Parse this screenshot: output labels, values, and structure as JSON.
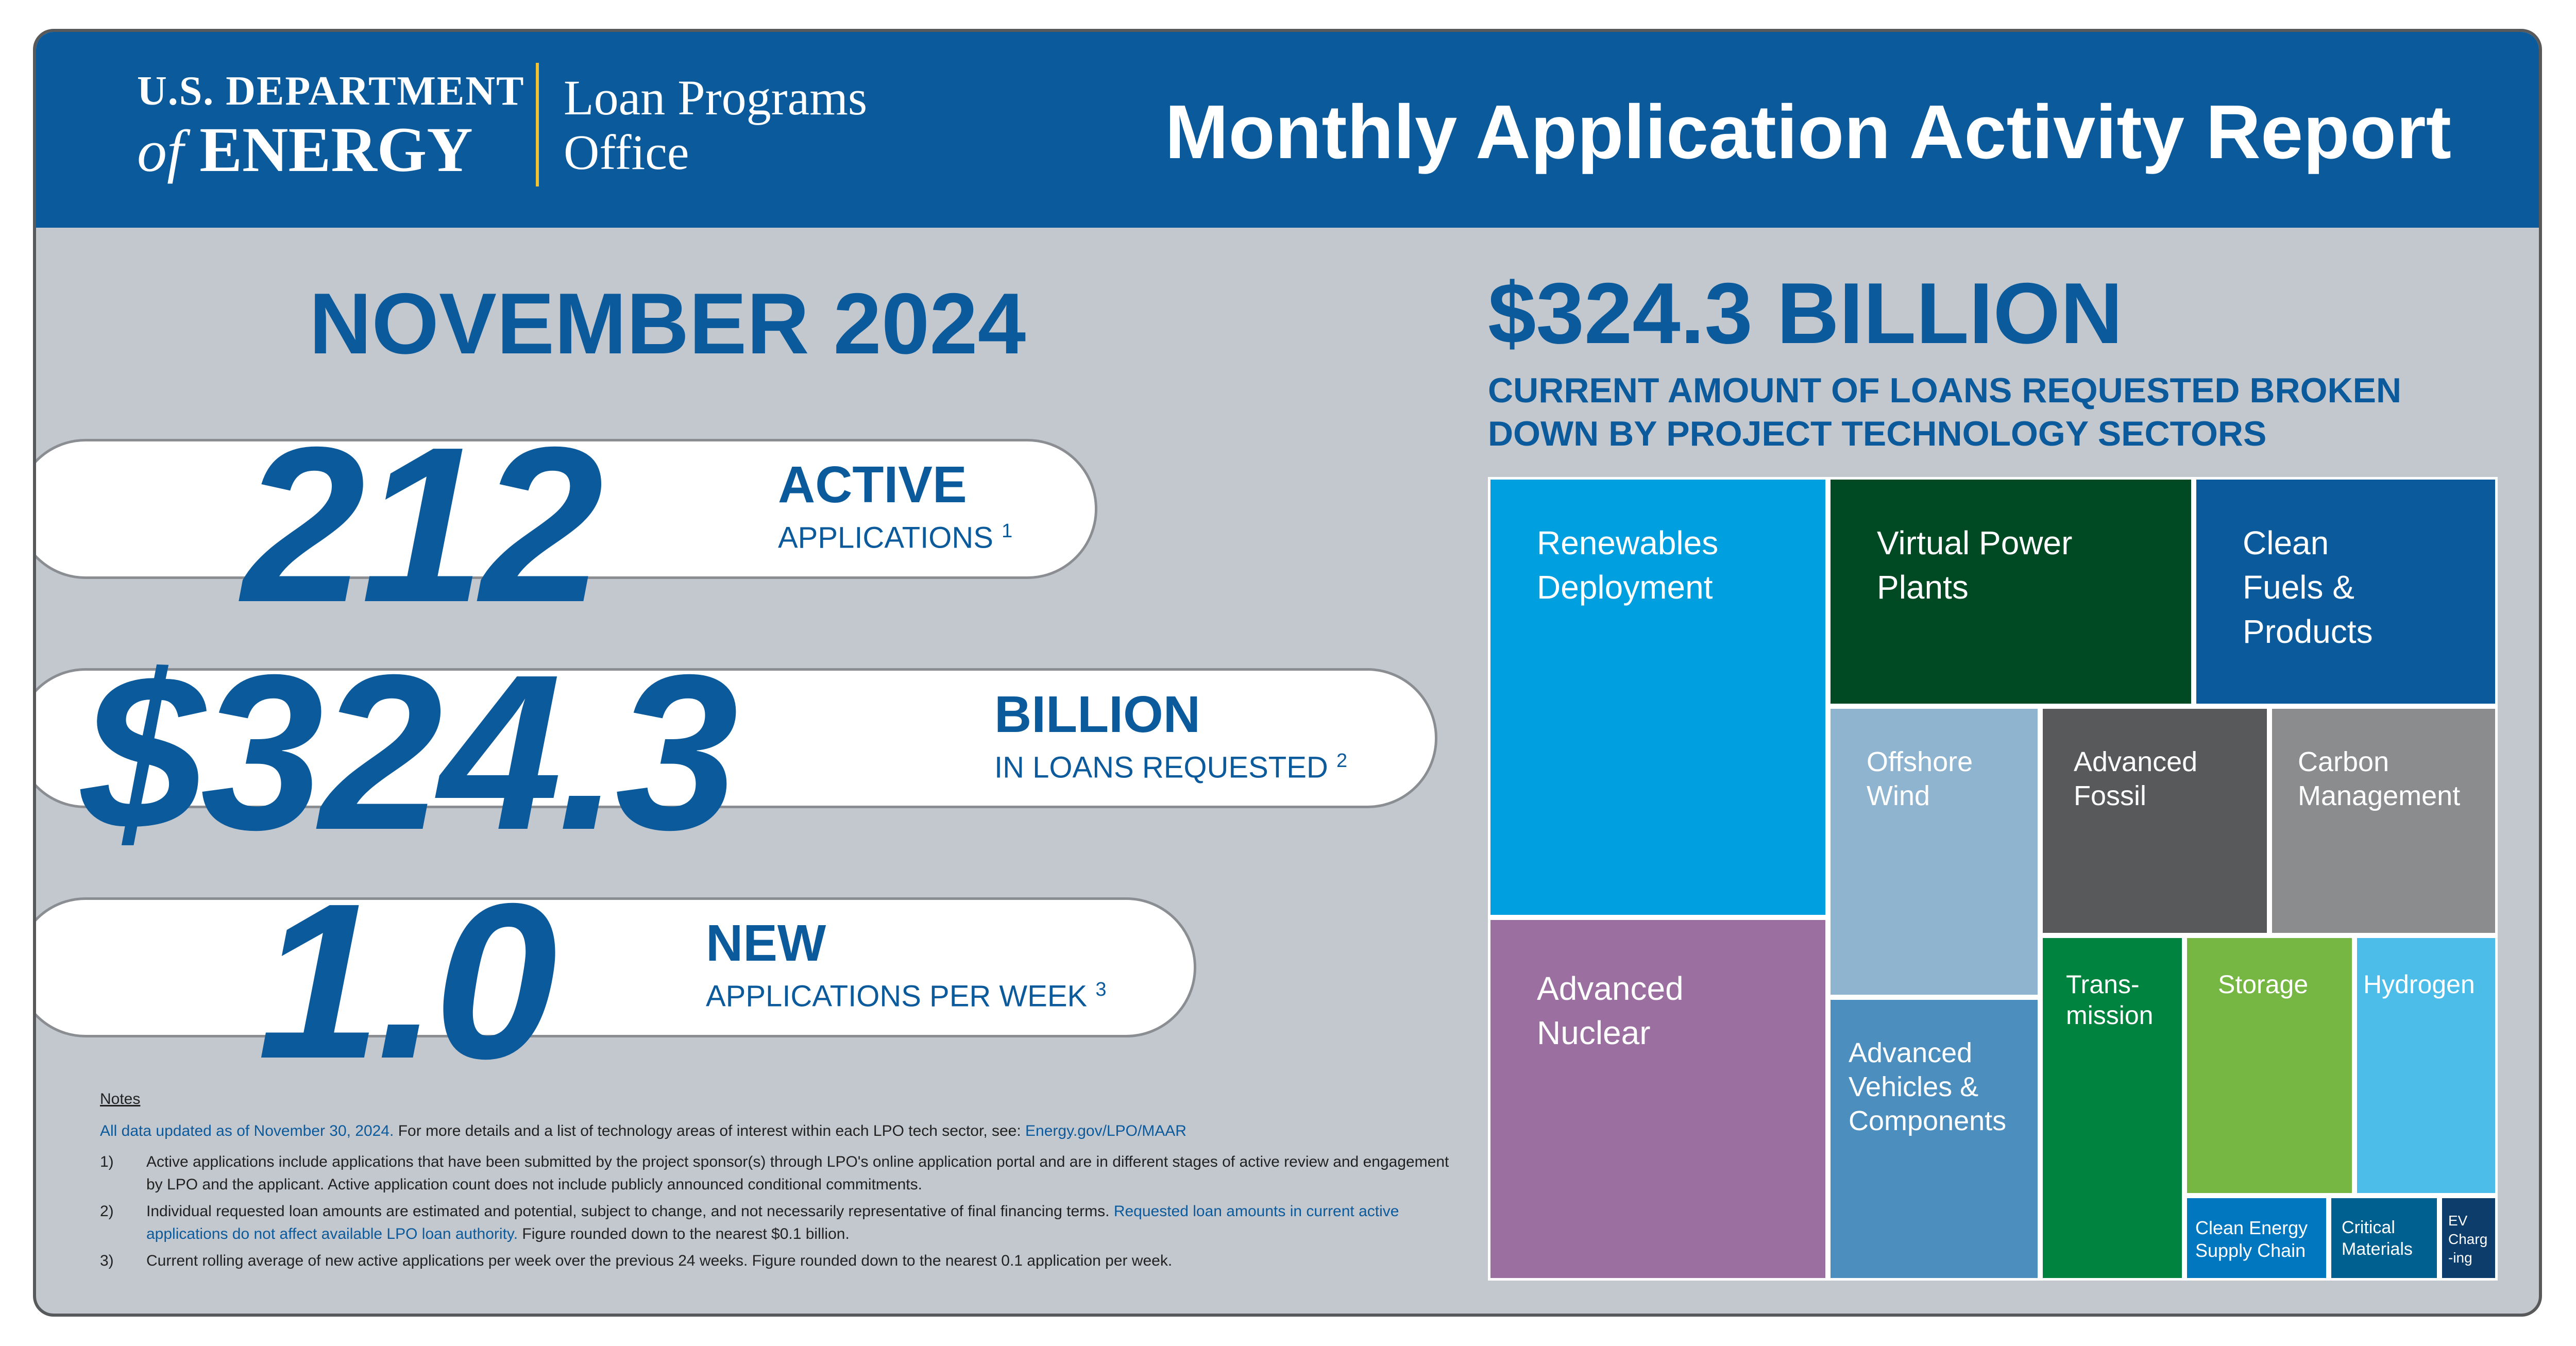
{
  "header": {
    "agency_line1": "U.S. DEPARTMENT",
    "agency_of": "of",
    "agency_energy": "ENERGY",
    "office_line1": "Loan Programs",
    "office_line2": "Office",
    "report_title": "Monthly Application Activity Report"
  },
  "period": "NOVEMBER 2024",
  "stats": [
    {
      "value": "212",
      "label": "ACTIVE",
      "sublabel": "APPLICATIONS",
      "note_ref": "1"
    },
    {
      "value": "$324.3",
      "label": "BILLION",
      "sublabel": "IN LOANS REQUESTED",
      "note_ref": "2"
    },
    {
      "value": "1.0",
      "label": "NEW",
      "sublabel": "APPLICATIONS PER WEEK",
      "note_ref": "3"
    }
  ],
  "notes": {
    "heading": "Notes",
    "updated_text": "All data updated as of November 30, 2024.",
    "updated_more": "For more details and a list of technology areas of interest within each LPO tech sector, see:",
    "updated_link": "Energy.gov/LPO/MAAR",
    "items": [
      {
        "num": "1)",
        "text": "Active applications include applications that have been submitted by the project sponsor(s) through LPO's online application portal and are in different stages of active review and engagement by LPO and the applicant. Active application count does not include publicly announced conditional commitments."
      },
      {
        "num": "2)",
        "text": "Individual requested loan amounts are estimated and potential, subject to change, and not necessarily representative of final financing terms.",
        "text_link": "Requested loan amounts in current active applications do not affect available LPO loan authority.",
        "text_after": "Figure rounded down to the nearest $0.1 billion."
      },
      {
        "num": "3)",
        "text": "Current rolling average of new active applications per week over the previous 24 weeks. Figure rounded down to the nearest 0.1 application per week."
      }
    ]
  },
  "treemap": {
    "total": "$324.3 BILLION",
    "subtitle": "CURRENT AMOUNT OF LOANS REQUESTED BROKEN DOWN BY PROJECT TECHNOLOGY SECTORS",
    "sectors": [
      {
        "name": "Renewables\nDeployment",
        "color": "#009fdf"
      },
      {
        "name": "Advanced\nNuclear",
        "color": "#9b6fa0"
      },
      {
        "name": "Virtual Power\nPlants",
        "color": "#004a23"
      },
      {
        "name": "Clean\nFuels &\nProducts",
        "color": "#0b5a9c"
      },
      {
        "name": "Offshore\nWind",
        "color": "#8fb4cf"
      },
      {
        "name": "Advanced\nFossil",
        "color": "#58595b"
      },
      {
        "name": "Carbon\nManagement",
        "color": "#8a8c8e"
      },
      {
        "name": "Advanced\nVehicles &\nComponents",
        "color": "#4c8ebd"
      },
      {
        "name": "Trans-\nmission",
        "color": "#00833e"
      },
      {
        "name": "Storage",
        "color": "#76b743"
      },
      {
        "name": "Hydrogen",
        "color": "#4bbde8"
      },
      {
        "name": "Clean Energy\nSupply Chain",
        "color": "#0077bf"
      },
      {
        "name": "Critical\nMaterials",
        "color": "#00608f"
      },
      {
        "name": "EV\nCharg\n-ing",
        "color": "#0d3d6b"
      }
    ]
  }
}
